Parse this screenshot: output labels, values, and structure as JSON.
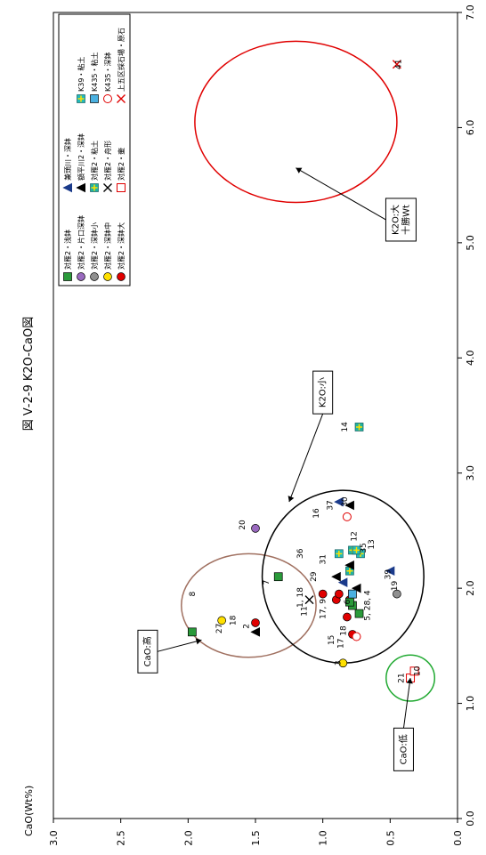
{
  "chart_data": {
    "type": "scatter",
    "title": "図 Ⅴ-2-9 K2O-CaO図",
    "ylabel": "CaO(Wt%)",
    "xlabel": "",
    "xlim": [
      0.0,
      7.0
    ],
    "ylim": [
      0.0,
      3.0
    ],
    "x_ticks": [
      "0.0",
      "1.0",
      "2.0",
      "3.0",
      "4.0",
      "5.0",
      "6.0",
      "7.0"
    ],
    "y_ticks": [
      "0.0",
      "0.5",
      "1.0",
      "1.5",
      "2.0",
      "2.5",
      "3.0"
    ],
    "legend_position": "top-left",
    "series": [
      {
        "name": "対雁2・深鉢大",
        "marker": "circle",
        "color": "#e00000",
        "points": [
          {
            "x": 1.9,
            "y": 0.8
          },
          {
            "x": 1.75,
            "y": 0.82
          },
          {
            "x": 1.9,
            "y": 0.9
          },
          {
            "x": 1.95,
            "y": 1.0
          },
          {
            "x": 1.6,
            "y": 0.78
          },
          {
            "x": 1.7,
            "y": 1.5
          },
          {
            "x": 1.95,
            "y": 0.88
          }
        ]
      },
      {
        "name": "対雁2・深鉢中",
        "marker": "circle",
        "color": "#ffe000",
        "points": [
          {
            "x": 1.35,
            "y": 0.85
          },
          {
            "x": 1.72,
            "y": 1.75
          }
        ]
      },
      {
        "name": "対雁2・深鉢小",
        "marker": "circle",
        "color": "#909090",
        "points": [
          {
            "x": 1.95,
            "y": 0.45
          }
        ]
      },
      {
        "name": "対雁2・片口深鉢",
        "marker": "circle",
        "color": "#9a6abf",
        "points": [
          {
            "x": 2.52,
            "y": 1.5
          }
        ]
      },
      {
        "name": "対雁2・浅鉢",
        "marker": "square",
        "color": "#2a9a3a",
        "points": [
          {
            "x": 1.78,
            "y": 0.73
          },
          {
            "x": 1.85,
            "y": 0.78
          },
          {
            "x": 2.1,
            "y": 1.33
          },
          {
            "x": 1.62,
            "y": 1.97
          },
          {
            "x": 1.88,
            "y": 0.8
          }
        ]
      },
      {
        "name": "対雁2・壷",
        "marker": "open-square",
        "color": "#e00000",
        "points": [
          {
            "x": 1.22,
            "y": 0.35
          },
          {
            "x": 1.28,
            "y": 0.32
          }
        ]
      },
      {
        "name": "対雁2・舟形",
        "marker": "x",
        "color": "#000000",
        "points": [
          {
            "x": 1.9,
            "y": 1.1
          }
        ]
      },
      {
        "name": "対雁2・粘土",
        "marker": "cross-square",
        "color": "#1fb3a3",
        "points": [
          {
            "x": 3.4,
            "y": 0.73
          },
          {
            "x": 2.33,
            "y": 0.78
          },
          {
            "x": 2.15,
            "y": 0.8
          }
        ]
      },
      {
        "name": "額平川2・深鉢",
        "marker": "triangle",
        "color": "#000000",
        "points": [
          {
            "x": 1.62,
            "y": 1.5
          },
          {
            "x": 2.1,
            "y": 0.9
          },
          {
            "x": 2.2,
            "y": 0.8
          },
          {
            "x": 2.72,
            "y": 0.8
          },
          {
            "x": 2.0,
            "y": 0.75
          }
        ]
      },
      {
        "name": "兼頭川・深鉢",
        "marker": "triangle",
        "color": "#1a3a8a",
        "points": [
          {
            "x": 2.75,
            "y": 0.88
          },
          {
            "x": 2.15,
            "y": 0.5
          },
          {
            "x": 2.05,
            "y": 0.85
          }
        ]
      },
      {
        "name": "上五区採石場・原石",
        "marker": "x",
        "color": "#e00000",
        "points": [
          {
            "x": 6.55,
            "y": 0.45
          }
        ]
      },
      {
        "name": "K435・深鉢",
        "marker": "open-circle",
        "color": "#e00000",
        "points": [
          {
            "x": 2.62,
            "y": 0.82
          },
          {
            "x": 1.58,
            "y": 0.75
          }
        ]
      },
      {
        "name": "K435・粘土",
        "marker": "square",
        "color": "#4ab0e0",
        "points": [
          {
            "x": 1.95,
            "y": 0.78
          }
        ]
      },
      {
        "name": "K39・粘土",
        "marker": "cross-square",
        "color": "#22bbbb",
        "points": [
          {
            "x": 2.3,
            "y": 0.72
          },
          {
            "x": 2.3,
            "y": 0.88
          },
          {
            "x": 2.33,
            "y": 0.75
          }
        ]
      }
    ],
    "point_labels": [
      {
        "x": 1.22,
        "y": 0.4,
        "text": "21"
      },
      {
        "x": 1.28,
        "y": 0.28,
        "text": "10"
      },
      {
        "x": 1.35,
        "y": 0.87,
        "text": "3"
      },
      {
        "x": 1.52,
        "y": 0.85,
        "text": "17"
      },
      {
        "x": 1.63,
        "y": 0.83,
        "text": "18"
      },
      {
        "x": 1.55,
        "y": 0.92,
        "text": "15"
      },
      {
        "x": 1.88,
        "y": 0.8,
        "text": "6"
      },
      {
        "x": 1.85,
        "y": 0.65,
        "text": "5, 28, 4"
      },
      {
        "x": 1.82,
        "y": 0.98,
        "text": "17, 9"
      },
      {
        "x": 1.92,
        "y": 1.15,
        "text": "1, 18"
      },
      {
        "x": 1.8,
        "y": 1.12,
        "text": "11"
      },
      {
        "x": 2.02,
        "y": 0.45,
        "text": "19"
      },
      {
        "x": 2.38,
        "y": 0.62,
        "text": "13"
      },
      {
        "x": 2.12,
        "y": 0.5,
        "text": "39"
      },
      {
        "x": 2.35,
        "y": 0.68,
        "text": "35"
      },
      {
        "x": 2.25,
        "y": 0.98,
        "text": "31"
      },
      {
        "x": 2.45,
        "y": 0.75,
        "text": "12"
      },
      {
        "x": 2.1,
        "y": 1.05,
        "text": "29"
      },
      {
        "x": 2.3,
        "y": 1.15,
        "text": "36"
      },
      {
        "x": 2.65,
        "y": 1.03,
        "text": "16"
      },
      {
        "x": 2.72,
        "y": 0.93,
        "text": "37"
      },
      {
        "x": 2.75,
        "y": 0.82,
        "text": "30"
      },
      {
        "x": 3.4,
        "y": 0.82,
        "text": "14"
      },
      {
        "x": 6.55,
        "y": 0.42,
        "text": "41"
      },
      {
        "x": 1.67,
        "y": 1.55,
        "text": "2"
      },
      {
        "x": 1.72,
        "y": 1.65,
        "text": "18"
      },
      {
        "x": 1.65,
        "y": 1.75,
        "text": "27"
      },
      {
        "x": 2.05,
        "y": 1.4,
        "text": "7"
      },
      {
        "x": 1.95,
        "y": 1.95,
        "text": "8"
      },
      {
        "x": 2.55,
        "y": 1.58,
        "text": "20"
      }
    ],
    "annotations": [
      {
        "text": "CaO:低",
        "box_x": 0.6,
        "box_y": 0.4
      },
      {
        "text": "CaO:高",
        "box_x": 1.45,
        "box_y": 2.3
      },
      {
        "text": "K2O:小",
        "box_x": 3.7,
        "box_y": 1.0
      },
      {
        "text": "K2O:大\n十勝Wt",
        "box_x": 5.2,
        "box_y": 0.42
      }
    ],
    "groups": [
      {
        "name": "low-cao-ellipse",
        "color": "#22aa33"
      },
      {
        "name": "high-cao-ellipse",
        "color": "#a07060"
      },
      {
        "name": "low-k2o-ellipse",
        "color": "#000000"
      },
      {
        "name": "high-k2o-ellipse",
        "color": "#e00000"
      }
    ]
  }
}
